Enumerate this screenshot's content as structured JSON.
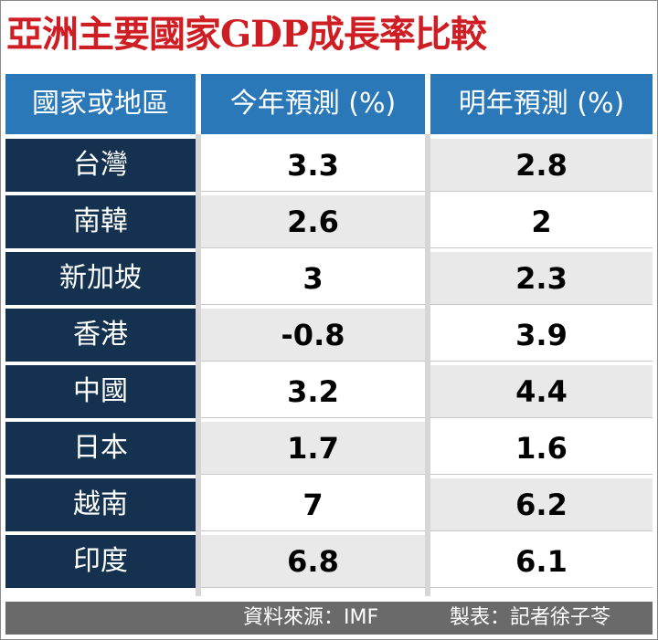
{
  "chart_data": {
    "type": "table",
    "title": "亞洲主要國家GDP成長率比較",
    "columns": [
      "國家或地區",
      "今年預測 (%)",
      "明年預測 (%)"
    ],
    "rows": [
      {
        "name": "台灣",
        "this_year": "3.3",
        "next_year": "2.8"
      },
      {
        "name": "南韓",
        "this_year": "2.6",
        "next_year": "2"
      },
      {
        "name": "新加坡",
        "this_year": "3",
        "next_year": "2.3"
      },
      {
        "name": "香港",
        "this_year": "-0.8",
        "next_year": "3.9"
      },
      {
        "name": "中國",
        "this_year": "3.2",
        "next_year": "4.4"
      },
      {
        "name": "日本",
        "this_year": "1.7",
        "next_year": "1.6"
      },
      {
        "name": "越南",
        "this_year": "7",
        "next_year": "6.2"
      },
      {
        "name": "印度",
        "this_year": "6.8",
        "next_year": "6.1"
      }
    ],
    "source": "資料來源：IMF",
    "credit": "製表：記者徐子苓"
  },
  "colors": {
    "title": "#cf1d24",
    "header": "#2a78b8",
    "row_label": "#14324f",
    "shaded_cell": "#e9e9e9",
    "footer": "#6a6a6a"
  }
}
